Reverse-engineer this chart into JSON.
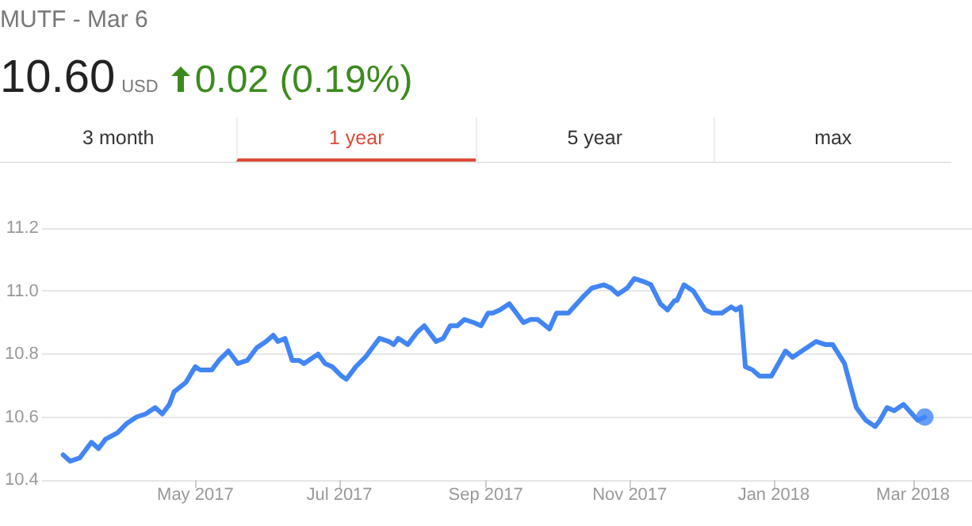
{
  "chart_data": {
    "type": "line",
    "title": "MUTF - Mar 6",
    "annotations": [
      "10.60",
      "USD",
      "0.02 (0.19%)",
      "3 month",
      "1 year",
      "5 year",
      "max"
    ],
    "x": [
      "2017-03-06",
      "2017-03-09",
      "2017-03-13",
      "2017-03-18",
      "2017-03-21",
      "2017-03-24",
      "2017-03-29",
      "2017-04-02",
      "2017-04-06",
      "2017-04-10",
      "2017-04-14",
      "2017-04-17",
      "2017-04-20",
      "2017-04-22",
      "2017-04-27",
      "2017-05-01",
      "2017-05-03",
      "2017-05-08",
      "2017-05-11",
      "2017-05-15",
      "2017-05-19",
      "2017-05-23",
      "2017-05-27",
      "2017-05-31",
      "2017-06-03",
      "2017-06-05",
      "2017-06-08",
      "2017-06-11",
      "2017-06-14",
      "2017-06-16",
      "2017-06-22",
      "2017-06-25",
      "2017-06-28",
      "2017-07-02",
      "2017-07-04",
      "2017-07-08",
      "2017-07-12",
      "2017-07-15",
      "2017-07-18",
      "2017-07-22",
      "2017-07-24",
      "2017-07-26",
      "2017-07-30",
      "2017-08-03",
      "2017-08-06",
      "2017-08-11",
      "2017-08-14",
      "2017-08-17",
      "2017-08-20",
      "2017-08-23",
      "2017-08-27",
      "2017-08-30",
      "2017-09-02",
      "2017-09-04",
      "2017-09-07",
      "2017-09-11",
      "2017-09-14",
      "2017-09-17",
      "2017-09-20",
      "2017-09-23",
      "2017-09-28",
      "2017-10-01",
      "2017-10-06",
      "2017-10-12",
      "2017-10-16",
      "2017-10-21",
      "2017-10-24",
      "2017-10-27",
      "2017-10-31",
      "2017-11-03",
      "2017-11-07",
      "2017-11-10",
      "2017-11-14",
      "2017-11-17",
      "2017-11-20",
      "2017-11-21",
      "2017-11-24",
      "2017-11-28",
      "2017-12-03",
      "2017-12-06",
      "2017-12-10",
      "2017-12-14",
      "2017-12-16",
      "2017-12-18",
      "2017-12-20",
      "2017-12-23",
      "2017-12-26",
      "2017-12-31",
      "2018-01-03",
      "2018-01-06",
      "2018-01-09",
      "2018-01-15",
      "2018-01-19",
      "2018-01-23",
      "2018-01-26",
      "2018-01-31",
      "2018-02-05",
      "2018-02-09",
      "2018-02-13",
      "2018-02-15",
      "2018-02-18",
      "2018-02-21",
      "2018-02-25",
      "2018-03-03",
      "2018-03-06"
    ],
    "series": [
      {
        "color": "#4285f4",
        "values": [
          10.48,
          10.46,
          10.47,
          10.52,
          10.5,
          10.53,
          10.55,
          10.58,
          10.6,
          10.61,
          10.63,
          10.61,
          10.64,
          10.68,
          10.71,
          10.76,
          10.75,
          10.75,
          10.78,
          10.81,
          10.77,
          10.78,
          10.82,
          10.84,
          10.86,
          10.84,
          10.85,
          10.78,
          10.78,
          10.77,
          10.8,
          10.77,
          10.76,
          10.73,
          10.72,
          10.76,
          10.79,
          10.82,
          10.85,
          10.84,
          10.83,
          10.85,
          10.83,
          10.87,
          10.89,
          10.84,
          10.85,
          10.89,
          10.89,
          10.91,
          10.9,
          10.89,
          10.93,
          10.93,
          10.94,
          10.96,
          10.93,
          10.9,
          10.91,
          10.91,
          10.88,
          10.93,
          10.93,
          10.98,
          11.01,
          11.02,
          11.01,
          10.99,
          11.01,
          11.04,
          11.03,
          11.02,
          10.96,
          10.94,
          10.97,
          10.97,
          11.02,
          11.0,
          10.94,
          10.93,
          10.93,
          10.95,
          10.94,
          10.95,
          10.76,
          10.75,
          10.73,
          10.73,
          10.77,
          10.81,
          10.79,
          10.82,
          10.84,
          10.83,
          10.83,
          10.77,
          10.63,
          10.59,
          10.57,
          10.59,
          10.63,
          10.62,
          10.64,
          10.59,
          10.6
        ]
      },
      {
        "type": "scatter",
        "marker": "circle",
        "color": "#4285f4",
        "x": [
          "2018-03-06"
        ],
        "values": [
          10.6
        ]
      }
    ],
    "xlim": [
      "2017-02-25",
      "2018-03-26"
    ],
    "xticks": [
      {
        "value": "2017-05-01",
        "label": "May 2017"
      },
      {
        "value": "2017-07-01",
        "label": "Jul 2017"
      },
      {
        "value": "2017-09-01",
        "label": "Sep 2017"
      },
      {
        "value": "2017-11-01",
        "label": "Nov 2017"
      },
      {
        "value": "2018-01-01",
        "label": "Jan 2018"
      },
      {
        "value": "2018-03-01",
        "label": "Mar 2018"
      }
    ],
    "ylim": [
      10.4,
      11.2
    ],
    "yticks": [
      {
        "value": 10.4,
        "label": "10.4"
      },
      {
        "value": 10.6,
        "label": "10.6"
      },
      {
        "value": 10.8,
        "label": "10.8"
      },
      {
        "value": 11.0,
        "label": "11.0"
      },
      {
        "value": 11.2,
        "label": "11.2"
      }
    ],
    "grid": "y"
  }
}
